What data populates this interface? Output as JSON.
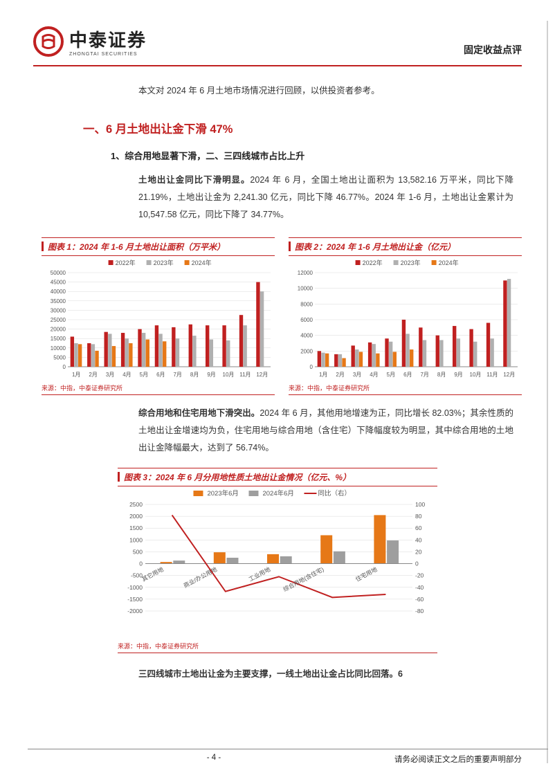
{
  "logo": {
    "main": "中泰证券",
    "sub": "ZHONGTAI SECURITIES",
    "circle_color": "#c02020"
  },
  "header_right": "固定收益点评",
  "intro": "本文对 2024 年 6 月土地市场情况进行回顾，以供投资者参考。",
  "section_title": "一、6 月土地出让金下滑 47%",
  "sub_heading": "1、综合用地显著下滑，二、三四线城市占比上升",
  "para1_bold": "土地出让金同比下滑明显。",
  "para1_rest": "2024 年 6 月，全国土地出让面积为 13,582.16 万平米，同比下降 21.19%，土地出让金为 2,241.30 亿元，同比下降 46.77%。2024 年 1-6 月，土地出让金累计为 10,547.58 亿元，同比下降了 34.77%。",
  "chart1": {
    "title": "图表 1：2024 年 1-6 月土地出让面积（万平米）",
    "source": "来源：中指，中泰证券研究所",
    "legend": [
      "2022年",
      "2023年",
      "2024年"
    ],
    "legend_colors": [
      "#c02020",
      "#b0b0b0",
      "#e67817"
    ],
    "categories": [
      "1月",
      "2月",
      "3月",
      "4月",
      "5月",
      "6月",
      "7月",
      "8月",
      "9月",
      "10月",
      "11月",
      "12月"
    ],
    "series_2022": [
      16000,
      12500,
      18500,
      18000,
      20000,
      22000,
      21000,
      22500,
      22000,
      22000,
      27500,
      45000
    ],
    "series_2023": [
      12500,
      12000,
      17500,
      15000,
      18000,
      17500,
      15000,
      16500,
      14500,
      14000,
      22000,
      40000
    ],
    "series_2024": [
      12000,
      8500,
      11000,
      12500,
      14500,
      13500,
      null,
      null,
      null,
      null,
      null,
      null
    ],
    "ylim": [
      0,
      50000
    ],
    "ytick_step": 5000,
    "bg": "#ffffff",
    "grid": "#d9d9d9",
    "axis": "#888",
    "tick_font": 8,
    "legend_font": 9
  },
  "chart2": {
    "title": "图表 2：2024 年 1-6 月土地出让金（亿元）",
    "source": "来源：中指，中泰证券研究所",
    "legend": [
      "2022年",
      "2023年",
      "2024年"
    ],
    "legend_colors": [
      "#c02020",
      "#b0b0b0",
      "#e67817"
    ],
    "categories": [
      "1月",
      "2月",
      "3月",
      "4月",
      "5月",
      "6月",
      "7月",
      "8月",
      "9月",
      "10月",
      "11月",
      "12月"
    ],
    "series_2022": [
      2000,
      1600,
      2700,
      3100,
      3600,
      6000,
      5000,
      4000,
      5200,
      4800,
      5600,
      11000
    ],
    "series_2023": [
      1800,
      1600,
      2200,
      2900,
      3200,
      4200,
      3400,
      3400,
      3600,
      3200,
      3600,
      11200
    ],
    "series_2024": [
      1700,
      1100,
      1900,
      1700,
      1900,
      2200,
      null,
      null,
      null,
      null,
      null,
      null
    ],
    "ylim": [
      0,
      12000
    ],
    "ytick_step": 2000,
    "bg": "#ffffff",
    "grid": "#d9d9d9",
    "axis": "#888",
    "tick_font": 8,
    "legend_font": 9
  },
  "para2_bold": "综合用地和住宅用地下滑突出。",
  "para2_rest": "2024 年 6 月，其他用地增速为正，同比增长 82.03%；其余性质的土地出让金增速均为负，住宅用地与综合用地（含住宅）下降幅度较为明显，其中综合用地的土地出让金降幅最大，达到了 56.74%。",
  "chart3": {
    "title": "图表 3：2024 年 6 月分用地性质土地出让金情况（亿元、%）",
    "source": "来源：中指，中泰证券研究所",
    "legend": [
      "2023年6月",
      "2024年6月",
      "同比（右）"
    ],
    "legend_colors": [
      "#e67817",
      "#9e9e9e",
      "#c02020"
    ],
    "categories": [
      "其它用地",
      "商业/办公用地",
      "工业用地",
      "综合用地(含住宅)",
      "住宅用地"
    ],
    "bars_2023": [
      70,
      480,
      400,
      1200,
      2050
    ],
    "bars_2024": [
      130,
      250,
      310,
      520,
      980
    ],
    "line_yoy": [
      82,
      -47,
      -22,
      -57,
      -52
    ],
    "ylim_left": [
      -2000,
      2500
    ],
    "ytick_left": 500,
    "ylim_right": [
      -80,
      100
    ],
    "ytick_right": 20,
    "bg": "#ffffff",
    "grid": "#d9d9d9",
    "axis": "#888",
    "tick_font": 8.5,
    "legend_font": 9.5
  },
  "para3": "三四线城市土地出让金为主要支撑，一线土地出让金占比同比回落。6",
  "footer": {
    "page": "- 4 -",
    "disclaimer": "请务必阅读正文之后的重要声明部分"
  },
  "colors": {
    "accent": "#c02020",
    "text": "#333333"
  }
}
